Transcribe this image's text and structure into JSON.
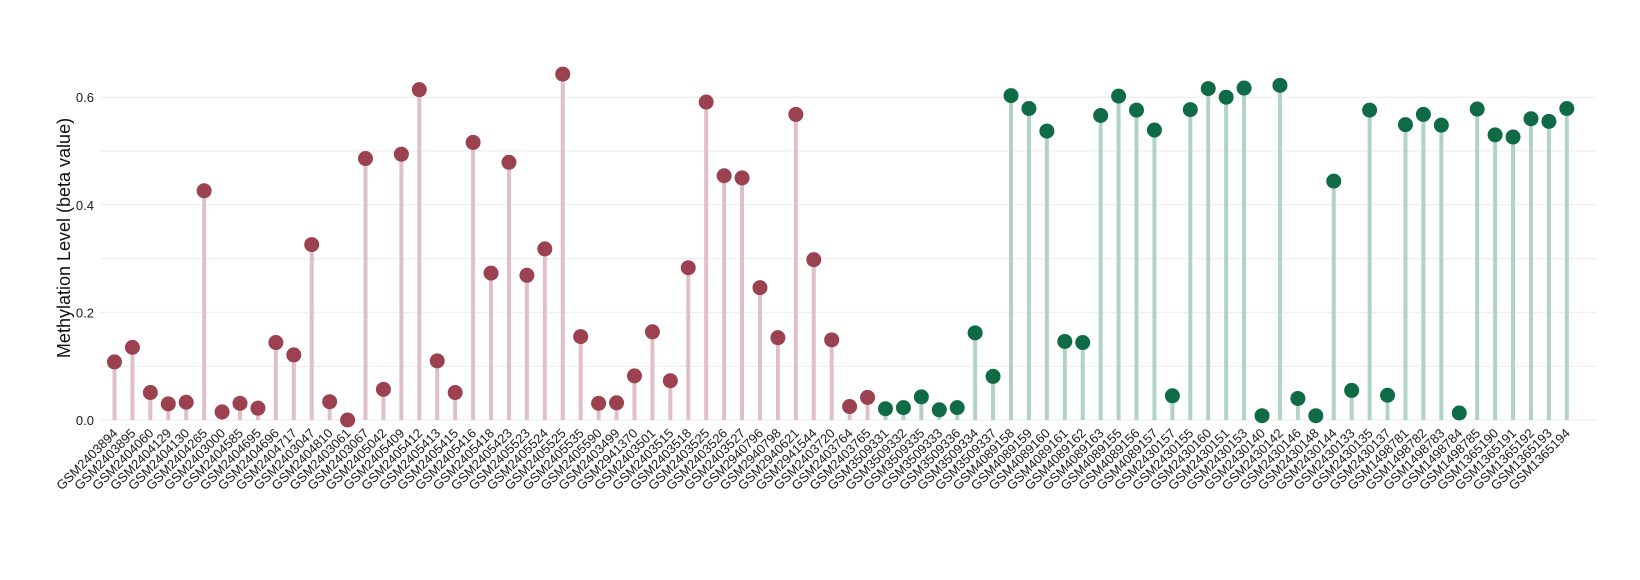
{
  "chart_data": {
    "type": "lollipop",
    "title": "",
    "xlabel": "",
    "ylabel": "Methylation Level (beta value)",
    "ylim": [
      0,
      0.66
    ],
    "yticks": [
      0.0,
      0.2,
      0.4,
      0.6
    ],
    "ytick_labels": [
      "0.0",
      "0.2",
      "0.4",
      "0.6"
    ],
    "grid": true,
    "legend": "none",
    "colors": {
      "group1_point": "#9b4150",
      "group1_stem": "#dfc0c6",
      "group2_point": "#0f6b45",
      "group2_stem": "#b2d3c4",
      "grid": "#ebebeb",
      "text": "#1a1a1a"
    },
    "categories": [
      "GSM2403894",
      "GSM2403895",
      "GSM2404060",
      "GSM2404129",
      "GSM2404130",
      "GSM2404265",
      "GSM2403000",
      "GSM2404585",
      "GSM2404695",
      "GSM2404696",
      "GSM2404717",
      "GSM2403047",
      "GSM2404810",
      "GSM2403061",
      "GSM2403067",
      "GSM2405042",
      "GSM2405409",
      "GSM2405412",
      "GSM2405413",
      "GSM2405415",
      "GSM2405416",
      "GSM2405418",
      "GSM2405423",
      "GSM2405523",
      "GSM2405524",
      "GSM2405525",
      "GSM2405535",
      "GSM2405590",
      "GSM2403499",
      "GSM2941370",
      "GSM2403501",
      "GSM2403515",
      "GSM2403518",
      "GSM2403525",
      "GSM2403526",
      "GSM2403527",
      "GSM2940796",
      "GSM2940798",
      "GSM2940621",
      "GSM2941544",
      "GSM2403720",
      "GSM2403764",
      "GSM2403765",
      "GSM3509331",
      "GSM3509332",
      "GSM3509335",
      "GSM3509333",
      "GSM3509336",
      "GSM3509334",
      "GSM3509337",
      "GSM4089158",
      "GSM4089159",
      "GSM4089160",
      "GSM4089161",
      "GSM4089162",
      "GSM4089163",
      "GSM4089155",
      "GSM4089156",
      "GSM4089157",
      "GSM2430157",
      "GSM2430155",
      "GSM2430160",
      "GSM2430151",
      "GSM2430153",
      "GSM2430140",
      "GSM2430142",
      "GSM2430146",
      "GSM2430148",
      "GSM2430144",
      "GSM2430133",
      "GSM2430135",
      "GSM2430137",
      "GSM1498781",
      "GSM1498782",
      "GSM1498783",
      "GSM1498784",
      "GSM1498785",
      "GSM1365190",
      "GSM1365191",
      "GSM1365192",
      "GSM1365193",
      "GSM1365194"
    ],
    "series": [
      {
        "group": 1,
        "values": [
          0.108,
          0.135,
          0.051,
          0.03,
          0.033,
          0.426,
          0.015,
          0.031,
          0.022,
          0.144,
          0.121,
          0.326,
          0.034,
          0.0,
          0.486,
          0.057,
          0.494,
          0.614,
          0.11,
          0.051,
          0.516,
          0.273,
          0.479,
          0.269,
          0.318,
          0.643,
          0.155,
          0.031,
          0.032,
          0.082,
          0.164,
          0.073,
          0.283,
          0.591,
          0.454,
          0.45,
          0.246,
          0.153,
          0.568,
          0.298,
          0.149,
          0.025,
          0.042,
          null,
          null,
          null,
          null,
          null,
          null,
          null,
          null,
          null,
          null,
          null,
          null,
          null,
          null,
          null,
          null,
          null,
          null,
          null,
          null,
          null,
          null,
          null,
          null,
          null,
          null,
          null,
          null,
          null,
          null,
          null,
          null,
          null,
          null,
          null,
          null,
          null,
          null,
          null
        ]
      },
      {
        "group": 2,
        "values": [
          null,
          null,
          null,
          null,
          null,
          null,
          null,
          null,
          null,
          null,
          null,
          null,
          null,
          null,
          null,
          null,
          null,
          null,
          null,
          null,
          null,
          null,
          null,
          null,
          null,
          null,
          null,
          null,
          null,
          null,
          null,
          null,
          null,
          null,
          null,
          null,
          null,
          null,
          null,
          null,
          null,
          null,
          null,
          0.021,
          0.023,
          0.043,
          0.019,
          0.023,
          0.162,
          0.081,
          0.603,
          0.579,
          0.537,
          0.146,
          0.144,
          0.566,
          0.602,
          0.576,
          0.539,
          0.045,
          0.577,
          0.616,
          0.6,
          0.617,
          0.008,
          0.622,
          0.04,
          0.008,
          0.444,
          0.055,
          0.576,
          0.046,
          0.549,
          0.568,
          0.548,
          0.013,
          0.578,
          0.53,
          0.526,
          0.56,
          0.555,
          0.579
        ]
      }
    ]
  }
}
